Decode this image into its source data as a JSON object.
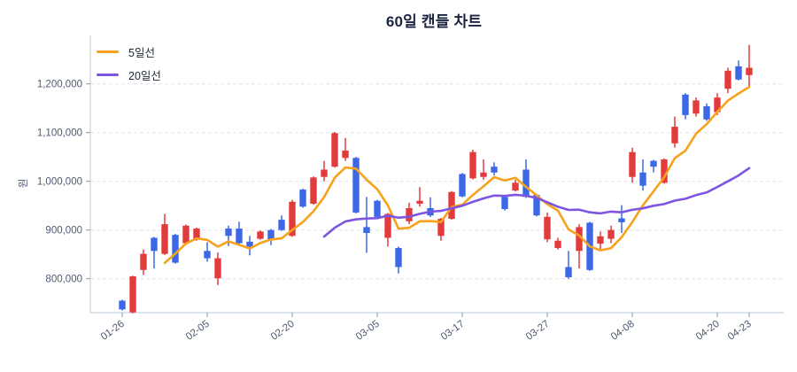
{
  "title": "60일 캔들 차트",
  "legend": {
    "items": [
      {
        "label": "5일선",
        "color": "#f7a21b"
      },
      {
        "label": "20일선",
        "color": "#7d55e0"
      }
    ]
  },
  "y_axis": {
    "unit_label": "원",
    "tick_values": [
      800000,
      900000,
      1000000,
      1100000,
      1200000
    ],
    "tick_labels": [
      "800,000",
      "900,000",
      "1,000,000",
      "1,100,000",
      "1,200,000"
    ]
  },
  "x_axis": {
    "ticks": [
      {
        "label": "01-26",
        "index": 0
      },
      {
        "label": "02-05",
        "index": 8
      },
      {
        "label": "02-20",
        "index": 16
      },
      {
        "label": "03-05",
        "index": 24
      },
      {
        "label": "03-17",
        "index": 32
      },
      {
        "label": "03-27",
        "index": 40
      },
      {
        "label": "04-08",
        "index": 48
      },
      {
        "label": "04-20",
        "index": 56
      },
      {
        "label": "04-23",
        "index": 59
      }
    ]
  },
  "chart_data": {
    "type": "candlestick",
    "period_label": "60일",
    "title": "60일 캔들 차트",
    "ylabel": "원",
    "y_range": [
      730000,
      1290000
    ],
    "grid": "horizontal-dashed",
    "up_color": "#e23b3b",
    "down_color": "#3c68e6",
    "grid_color": "#e0e3e9",
    "spine_color": "#c8d0dd",
    "tick_text_color": "#4c5a73",
    "moving_averages": [
      {
        "name": "5일선",
        "window": 5,
        "color": "#f7a21b"
      },
      {
        "name": "20일선",
        "window": 20,
        "color": "#7d55e0"
      }
    ],
    "candles_format": [
      "open",
      "high",
      "low",
      "close"
    ],
    "candles": [
      [
        755000,
        757000,
        735000,
        737000
      ],
      [
        731000,
        806000,
        729000,
        805000
      ],
      [
        818000,
        860000,
        808000,
        851000
      ],
      [
        884000,
        886000,
        821000,
        857000
      ],
      [
        851000,
        933000,
        849000,
        912000
      ],
      [
        890000,
        892000,
        831000,
        833000
      ],
      [
        873000,
        911000,
        871000,
        909000
      ],
      [
        882000,
        905000,
        878000,
        903000
      ],
      [
        857000,
        875000,
        835000,
        842000
      ],
      [
        801000,
        854000,
        787000,
        842000
      ],
      [
        903000,
        909000,
        867000,
        888000
      ],
      [
        903000,
        917000,
        870000,
        873000
      ],
      [
        876000,
        888000,
        848000,
        866000
      ],
      [
        882000,
        899000,
        880000,
        897000
      ],
      [
        900000,
        902000,
        869000,
        879000
      ],
      [
        921000,
        930000,
        898000,
        900000
      ],
      [
        888000,
        962000,
        886000,
        958000
      ],
      [
        983000,
        985000,
        946000,
        948000
      ],
      [
        954000,
        1010000,
        952000,
        1008000
      ],
      [
        1009000,
        1042000,
        1000000,
        1024000
      ],
      [
        1030000,
        1101000,
        1028000,
        1099000
      ],
      [
        1048000,
        1089000,
        1042000,
        1063000
      ],
      [
        1048000,
        1050000,
        934000,
        936000
      ],
      [
        906000,
        968000,
        853000,
        894000
      ],
      [
        960000,
        962000,
        925000,
        927000
      ],
      [
        884000,
        935000,
        866000,
        933000
      ],
      [
        863000,
        866000,
        811000,
        824000
      ],
      [
        918000,
        956000,
        912000,
        945000
      ],
      [
        954000,
        988000,
        948000,
        960000
      ],
      [
        945000,
        967000,
        927000,
        930000
      ],
      [
        888000,
        925000,
        878000,
        923000
      ],
      [
        923000,
        980000,
        921000,
        978000
      ],
      [
        1015000,
        1017000,
        967000,
        969000
      ],
      [
        1006000,
        1065000,
        1004000,
        1060000
      ],
      [
        1009000,
        1045000,
        1003000,
        1018000
      ],
      [
        1030000,
        1039000,
        1012000,
        1018000
      ],
      [
        968000,
        972000,
        940000,
        943000
      ],
      [
        981000,
        1003000,
        979000,
        997000
      ],
      [
        1024000,
        1045000,
        966000,
        968000
      ],
      [
        972000,
        974000,
        928000,
        930000
      ],
      [
        881000,
        936000,
        875000,
        927000
      ],
      [
        863000,
        884000,
        860000,
        878000
      ],
      [
        824000,
        857000,
        800000,
        803000
      ],
      [
        857000,
        912000,
        821000,
        906000
      ],
      [
        915000,
        917000,
        816000,
        818000
      ],
      [
        872000,
        897000,
        860000,
        887000
      ],
      [
        882000,
        909000,
        873000,
        900000
      ],
      [
        924000,
        951000,
        894000,
        916000
      ],
      [
        1009000,
        1069000,
        997000,
        1060000
      ],
      [
        1018000,
        1045000,
        981000,
        991000
      ],
      [
        1042000,
        1044000,
        1018000,
        1030000
      ],
      [
        997000,
        1047000,
        995000,
        1045000
      ],
      [
        1078000,
        1133000,
        1069000,
        1112000
      ],
      [
        1178000,
        1181000,
        1127000,
        1136000
      ],
      [
        1139000,
        1172000,
        1133000,
        1166000
      ],
      [
        1154000,
        1160000,
        1124000,
        1127000
      ],
      [
        1142000,
        1181000,
        1136000,
        1172000
      ],
      [
        1190000,
        1233000,
        1181000,
        1227000
      ],
      [
        1236000,
        1248000,
        1207000,
        1209000
      ],
      [
        1218000,
        1280000,
        1194000,
        1233000
      ]
    ]
  }
}
